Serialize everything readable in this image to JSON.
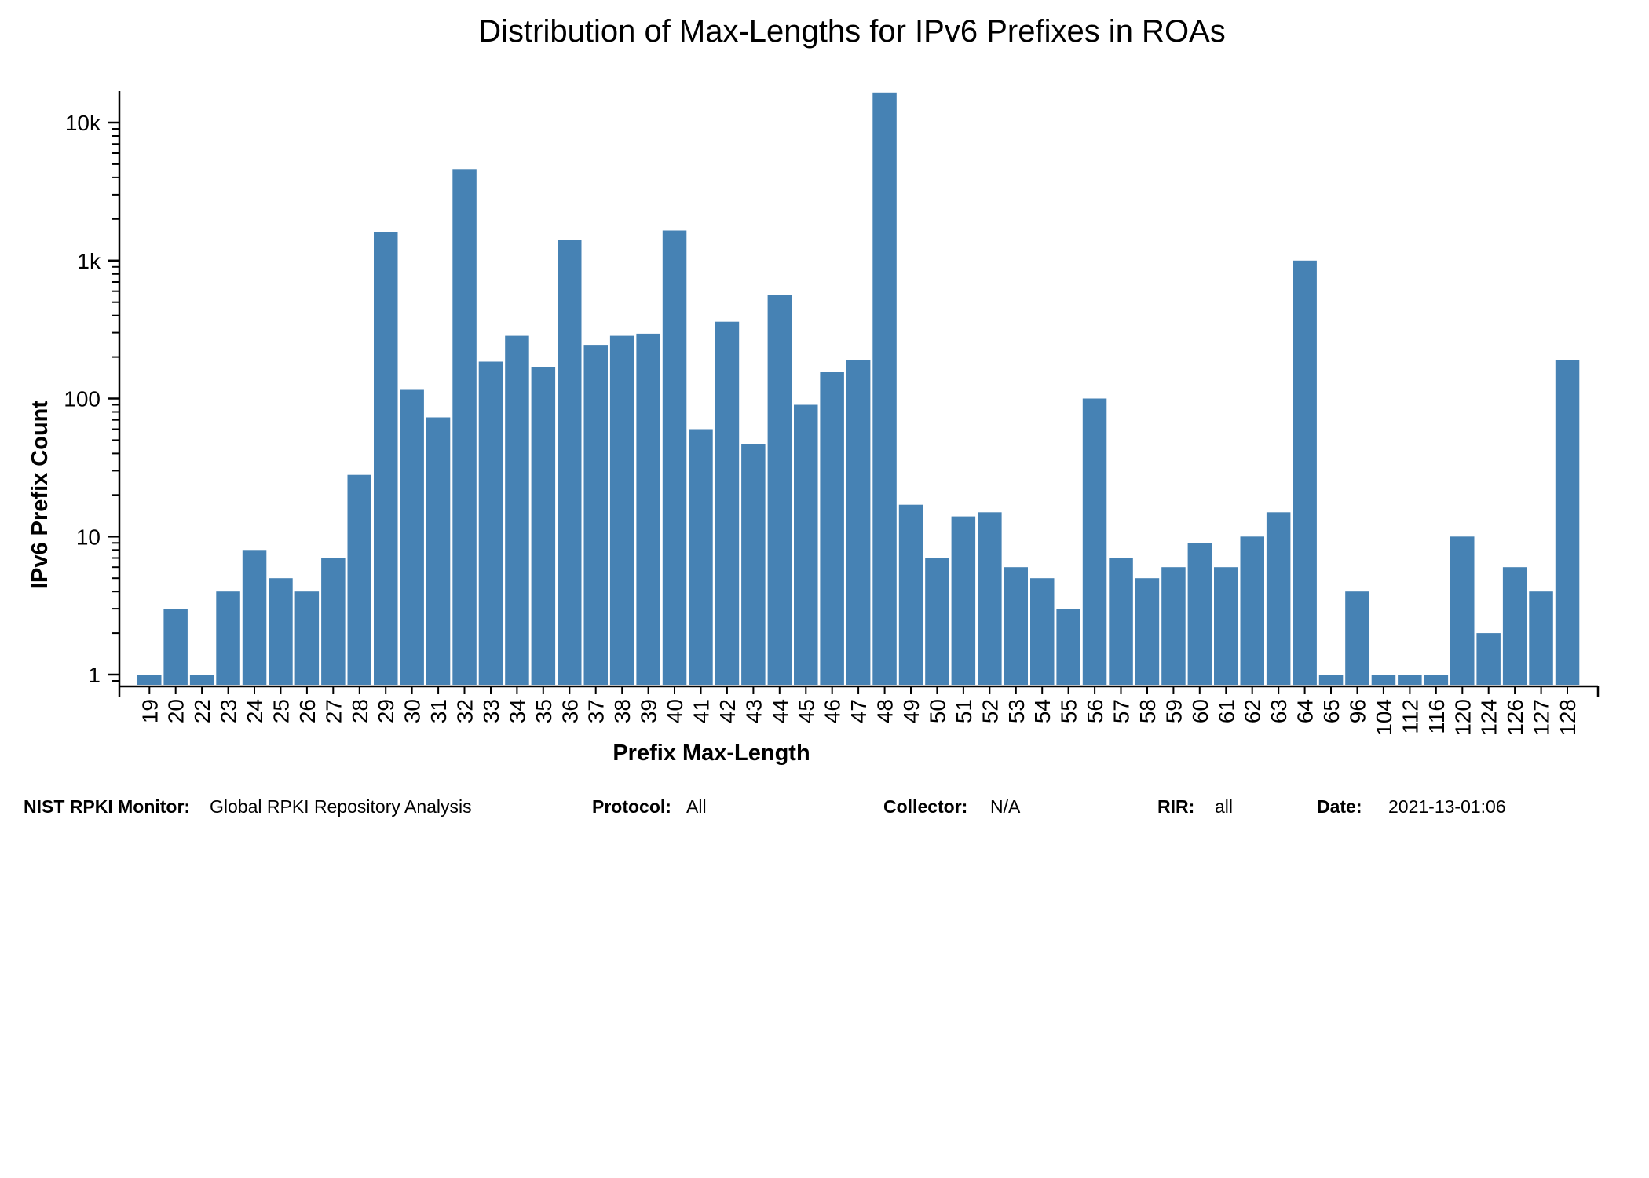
{
  "footer": {
    "monitor_label": "NIST RPKI Monitor:",
    "monitor_value": "Global RPKI Repository Analysis",
    "protocol_label": "Protocol:",
    "protocol_value": "All",
    "collector_label": "Collector:",
    "collector_value": "N/A",
    "rir_label": "RIR:",
    "rir_value": "all",
    "date_label": "Date:",
    "date_value": "2021-13-01:06"
  },
  "colors": {
    "bar": "#4682b4",
    "axis": "#000000"
  },
  "chart_data": {
    "type": "bar",
    "title": "Distribution of Max-Lengths for IPv6 Prefixes in ROAs",
    "xlabel": "Prefix Max-Length",
    "ylabel": "IPv6 Prefix Count",
    "yscale": "log",
    "ylim": [
      0.8,
      16500
    ],
    "yticks": [
      {
        "value": 1,
        "label": "1"
      },
      {
        "value": 10,
        "label": "10"
      },
      {
        "value": 100,
        "label": "100"
      },
      {
        "value": 1000,
        "label": "1k"
      },
      {
        "value": 10000,
        "label": "10k"
      }
    ],
    "grid": false,
    "categories": [
      "19",
      "20",
      "22",
      "23",
      "24",
      "25",
      "26",
      "27",
      "28",
      "29",
      "30",
      "31",
      "32",
      "33",
      "34",
      "35",
      "36",
      "37",
      "38",
      "39",
      "40",
      "41",
      "42",
      "43",
      "44",
      "45",
      "46",
      "47",
      "48",
      "49",
      "50",
      "51",
      "52",
      "53",
      "54",
      "55",
      "56",
      "57",
      "58",
      "59",
      "60",
      "61",
      "62",
      "63",
      "64",
      "65",
      "96",
      "104",
      "112",
      "116",
      "120",
      "124",
      "126",
      "127",
      "128"
    ],
    "values": [
      1,
      3,
      1,
      4,
      8,
      5,
      4,
      7,
      28,
      1600,
      117,
      73,
      4600,
      185,
      285,
      170,
      1420,
      245,
      285,
      295,
      1650,
      60,
      360,
      47,
      560,
      90,
      155,
      190,
      16500,
      17,
      7,
      14,
      15,
      6,
      5,
      3,
      100,
      7,
      5,
      6,
      9,
      6,
      10,
      15,
      1000,
      1,
      4,
      1,
      1,
      1,
      10,
      2,
      6,
      4,
      190
    ]
  }
}
